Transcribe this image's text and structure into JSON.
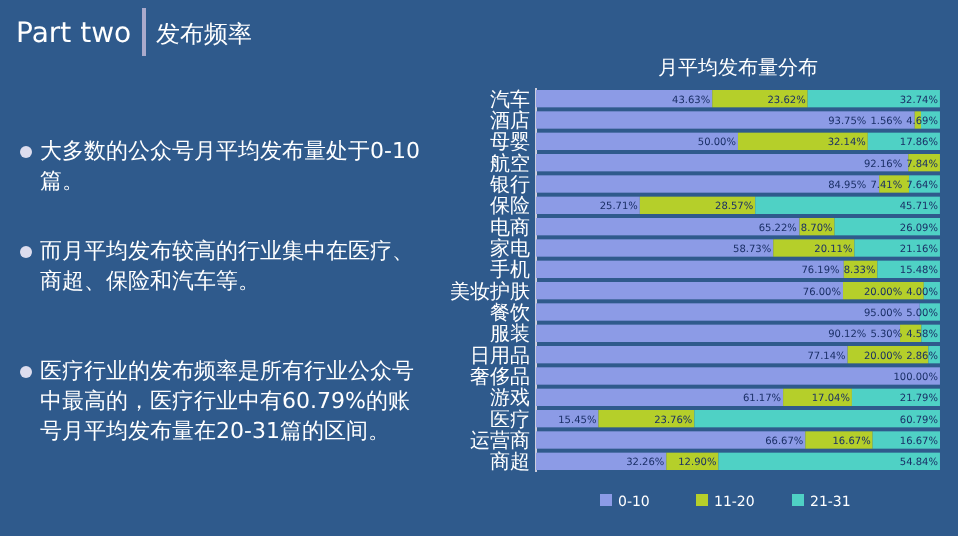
{
  "chart_data": {
    "type": "bar",
    "orientation": "horizontal",
    "stacked": true,
    "title": "月平均发布量分布",
    "categories": [
      "汽车",
      "酒店",
      "母婴",
      "航空",
      "银行",
      "保险",
      "电商",
      "家电",
      "手机",
      "美妆护肤",
      "餐饮",
      "服装",
      "日用品",
      "奢侈品",
      "游戏",
      "医疗",
      "运营商",
      "商超"
    ],
    "series": [
      {
        "name": "0-10",
        "color": "#8c9be6",
        "values": [
          43.63,
          93.75,
          50.0,
          92.16,
          84.95,
          25.71,
          65.22,
          58.73,
          76.19,
          76.0,
          95.0,
          90.12,
          77.14,
          100.0,
          61.17,
          15.45,
          66.67,
          32.26
        ],
        "value_labels": [
          "43.63%",
          "93.75%",
          "50.00%",
          "92.16%",
          "84.95%",
          "25.71%",
          "65.22%",
          "58.73%",
          "76.19%",
          "76.00%",
          "95.00%",
          "90.12%",
          "77.14%",
          "100.00%",
          "61.17%",
          "15.45%",
          "66.67%",
          "32.26%"
        ]
      },
      {
        "name": "11-20",
        "color": "#b5cf2a",
        "values": [
          23.62,
          1.56,
          32.14,
          7.84,
          7.41,
          28.57,
          8.7,
          20.11,
          8.33,
          20.0,
          null,
          5.3,
          20.0,
          null,
          17.04,
          23.76,
          16.67,
          12.9
        ],
        "value_labels": [
          "23.62%",
          "1.56%",
          "32.14%",
          "7.84%",
          "7.41%",
          "28.57%",
          "8.70%",
          "20.11%",
          "8.33%",
          "20.00%",
          null,
          "5.30%",
          "20.00%",
          null,
          "17.04%",
          "23.76%",
          "16.67%",
          "12.90%"
        ]
      },
      {
        "name": "21-31",
        "color": "#4fd1c5",
        "values": [
          32.74,
          4.69,
          17.86,
          null,
          7.64,
          45.71,
          26.09,
          21.16,
          15.48,
          4.0,
          5.0,
          4.58,
          2.86,
          null,
          21.79,
          60.79,
          16.67,
          54.84
        ],
        "value_labels": [
          "32.74%",
          "4.69%",
          "17.86%",
          null,
          "7.64%",
          "45.71%",
          "26.09%",
          "21.16%",
          "15.48%",
          "4.00%",
          "5.00%",
          "4.58%",
          "2.86%",
          null,
          "21.79%",
          "60.79%",
          "16.67%",
          "54.84%"
        ]
      }
    ],
    "legend": "bottom",
    "annotations": [
      "Part two",
      "发布频率",
      "大多数的公众号月平均发布量处于0-10篇。",
      "而月平均发布较高的行业集中在医疗、商超、保险和汽车等。",
      "医疗行业的发布频率是所有行业公众号中最高的，医疗行业中有60.79%的账号月平均发布量在20-31篇的区间。"
    ]
  }
}
